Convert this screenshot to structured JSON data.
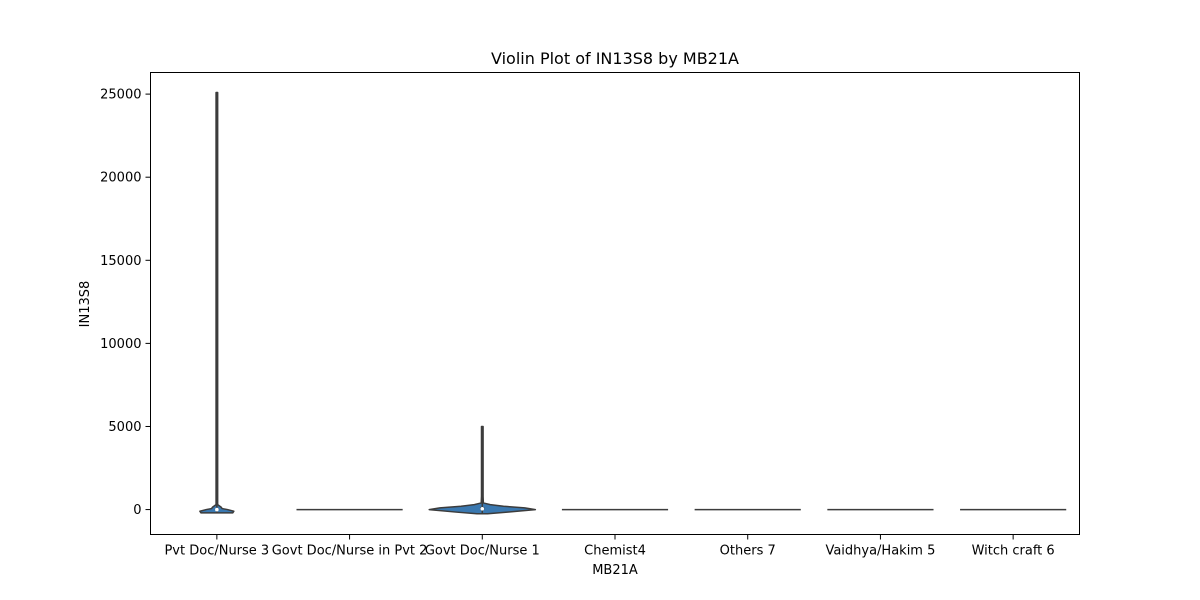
{
  "chart_data": {
    "type": "violin",
    "title": "Violin Plot of IN13S8 by MB21A",
    "xlabel": "MB21A",
    "ylabel": "IN13S8",
    "ylim": [
      -1500,
      26300
    ],
    "yticks": [
      0,
      5000,
      10000,
      15000,
      20000,
      25000
    ],
    "grid": false,
    "fill_color": "#3a78b0",
    "edge_color": "#3c3c3c",
    "categories": [
      "Pvt Doc/Nurse 3",
      "Govt Doc/Nurse in Pvt 2",
      "Govt Doc/Nurse 1",
      "Chemist4",
      "Others 7",
      "Vaidhya/Hakim 5",
      "Witch craft 6"
    ],
    "violins": [
      {
        "min": -200,
        "max": 25100,
        "q1": 0,
        "median": 0,
        "q3": 60,
        "profile": [
          [
            -200,
            0.3
          ],
          [
            -100,
            0.32
          ],
          [
            0,
            0.2
          ],
          [
            60,
            0.1
          ],
          [
            150,
            0.08
          ],
          [
            300,
            0.01
          ],
          [
            600,
            0.005
          ],
          [
            25100,
            0.004
          ]
        ]
      },
      {
        "min": 0,
        "max": 0,
        "q1": 0,
        "median": 0,
        "q3": 0,
        "profile": []
      },
      {
        "min": -250,
        "max": 5000,
        "q1": 0,
        "median": 50,
        "q3": 150,
        "profile": [
          [
            -250,
            0.1
          ],
          [
            -150,
            0.5
          ],
          [
            0,
            1.0
          ],
          [
            100,
            0.8
          ],
          [
            200,
            0.4
          ],
          [
            300,
            0.15
          ],
          [
            400,
            0.02
          ],
          [
            800,
            0.012
          ],
          [
            5000,
            0.01
          ]
        ]
      },
      {
        "min": 0,
        "max": 0,
        "q1": 0,
        "median": 0,
        "q3": 0,
        "profile": []
      },
      {
        "min": 0,
        "max": 0,
        "q1": 0,
        "median": 0,
        "q3": 0,
        "profile": []
      },
      {
        "min": 0,
        "max": 0,
        "q1": 0,
        "median": 0,
        "q3": 0,
        "profile": []
      },
      {
        "min": 0,
        "max": 0,
        "q1": 0,
        "median": 0,
        "q3": 0,
        "profile": []
      }
    ]
  }
}
